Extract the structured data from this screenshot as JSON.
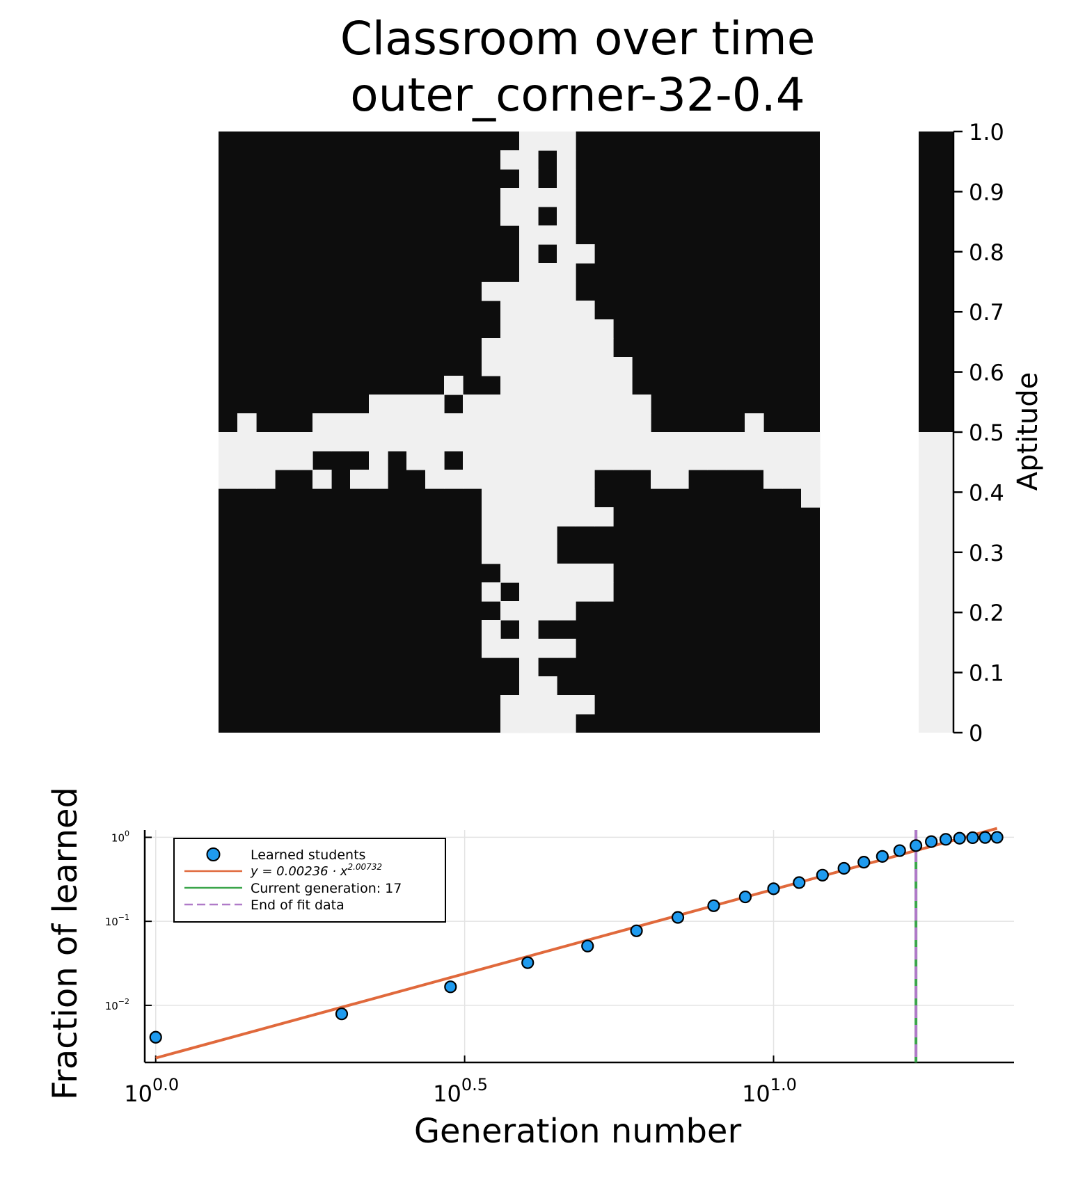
{
  "chart_data": [
    {
      "type": "heatmap",
      "title": "Classroom over time",
      "subtitle": "outer_corner-32-0.4",
      "grid_size": 32,
      "color_low": "#f0f0f0",
      "color_high": "#0d0d0d",
      "threshold": 0.5,
      "colorbar": {
        "label": "Aptitude",
        "ticks": [
          "0",
          "0.1",
          "0.2",
          "0.3",
          "0.4",
          "0.5",
          "0.6",
          "0.7",
          "0.8",
          "0.9",
          "1.0"
        ],
        "range": [
          0,
          1
        ]
      },
      "cells": [
        "00000000000000001110000000000000",
        "00000000000000011010000000000000",
        "00000000000000001010000000000000",
        "00000000000000011110000000000000",
        "00000000000000011010000000000000",
        "00000000000000001110000000000000",
        "00000000000000001011000000000000",
        "00000000000000001110000000000000",
        "00000000000000111110000000000000",
        "00000000000000011111000000000000",
        "00000000000000011111100000000000",
        "00000000000000111111100000000000",
        "00000000000000111111110000000000",
        "00000000000010011111110000000000",
        "00000000111101111111111000000000",
        "01000111111111111111111000001000",
        "11111111111111111111111111111111",
        "11111000101101111111111111111111",
        "11100101100111111111000110000111",
        "00000000000000111111000000000001",
        "00000000000000111111100000000000",
        "00000000000000111100000000000000",
        "00000000000000111100000000000000",
        "00000000000000011111100000000000",
        "00000000000000101111100000000000",
        "00000000000000011110000000000000",
        "00000000000000101000000000000000",
        "00000000000000111110000000000000",
        "00000000000000001000000000000000",
        "00000000000000001100000000000000",
        "00000000000000011111000000000000",
        "00000000000000011110000000000000"
      ]
    },
    {
      "type": "scatter",
      "xlabel": "Generation number",
      "ylabel": "Fraction of learned",
      "x_scale": "log10",
      "y_scale": "log10",
      "xlim": [
        0.96,
        24.5
      ],
      "ylim": [
        0.00209,
        1.22
      ],
      "x_ticks": [
        {
          "base": "10",
          "exp": "0.0",
          "value": 1
        },
        {
          "base": "10",
          "exp": "0.5",
          "value": 3.1623
        },
        {
          "base": "10",
          "exp": "1.0",
          "value": 10
        }
      ],
      "y_ticks": [
        {
          "base": "10",
          "exp": "0",
          "value": 1
        },
        {
          "base": "10",
          "exp": "−1",
          "value": 0.1
        },
        {
          "base": "10",
          "exp": "−2",
          "value": 0.01
        }
      ],
      "grid": true,
      "legend_position": "top-left",
      "series": [
        {
          "name": "Learned students",
          "color": "#1f9bef",
          "x": [
            1,
            2,
            3,
            4,
            5,
            6,
            7,
            8,
            9,
            10,
            11,
            12,
            13,
            14,
            15,
            16,
            17,
            18,
            19,
            20,
            21,
            22,
            23
          ],
          "y": [
            0.00417,
            0.00791,
            0.0166,
            0.0322,
            0.0508,
            0.0771,
            0.1114,
            0.1533,
            0.1953,
            0.2441,
            0.2891,
            0.3545,
            0.4277,
            0.5059,
            0.5928,
            0.6943,
            0.7969,
            0.8887,
            0.9463,
            0.9756,
            0.9902,
            0.9961,
            1.0
          ]
        },
        {
          "name": "y = 0.00236 · x^2.00732",
          "label_math": "y = 0.00236 · x",
          "label_exp": "2.00732",
          "color": "#e0693c",
          "coef": 0.00236,
          "power": 2.00732
        },
        {
          "name": "Current generation: 17",
          "color": "#3aa54a",
          "x": 17
        },
        {
          "name": "End of fit data",
          "color": "#b07ac8",
          "x": 17
        }
      ]
    }
  ]
}
